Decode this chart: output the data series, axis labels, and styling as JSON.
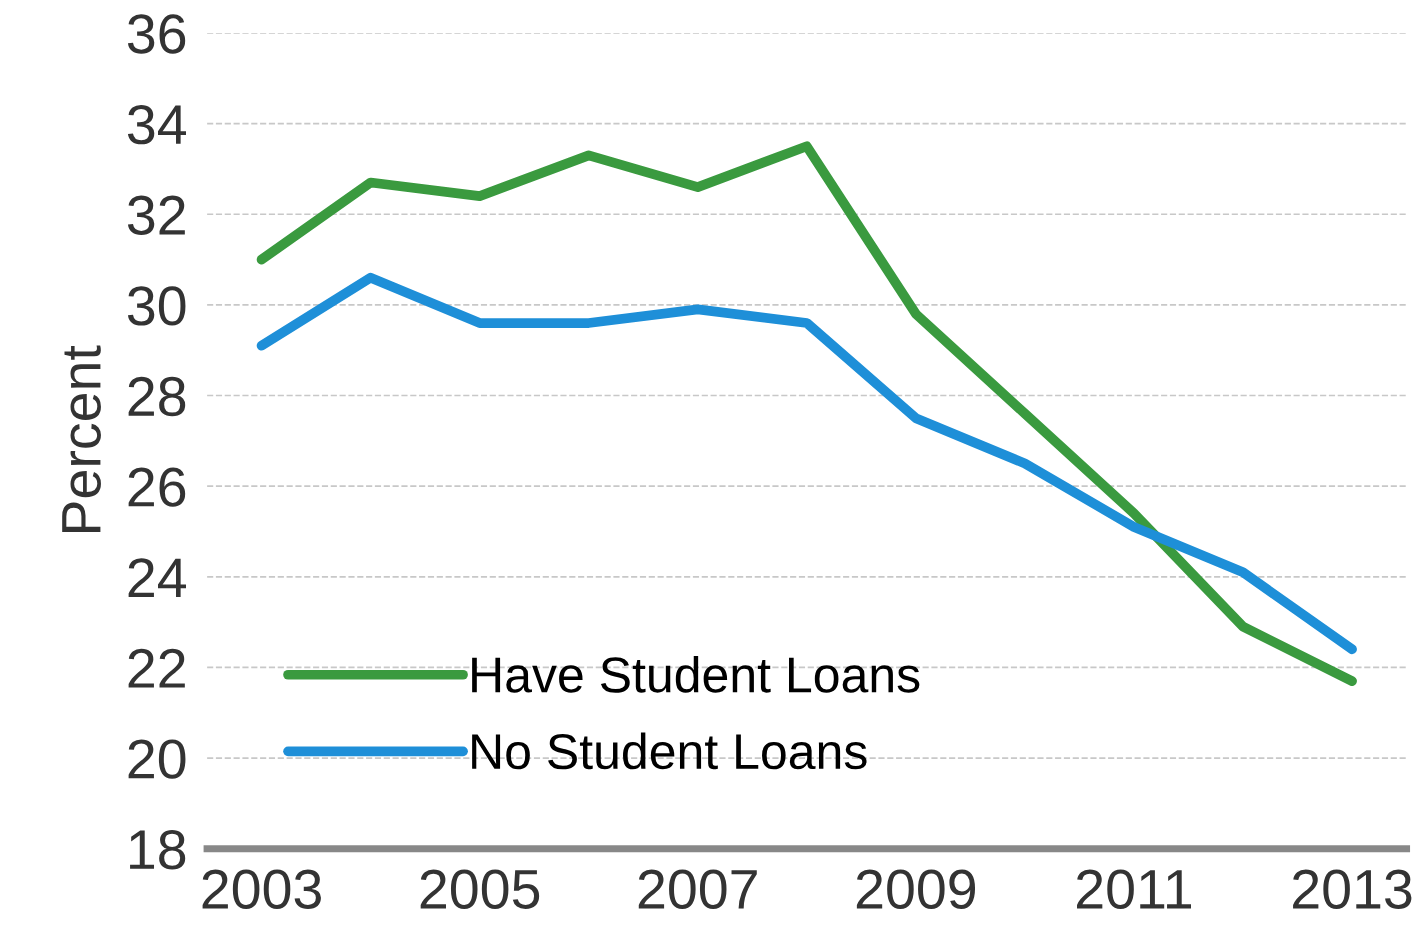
{
  "chart_data": {
    "type": "line",
    "ylabel": "Percent",
    "x": [
      2003,
      2004,
      2005,
      2006,
      2007,
      2008,
      2009,
      2010,
      2011,
      2012,
      2013
    ],
    "series": [
      {
        "name": "Have Student Loans",
        "color": "#3a9a3f",
        "values": [
          31.0,
          32.7,
          32.4,
          33.3,
          32.6,
          33.5,
          29.8,
          27.6,
          25.4,
          22.9,
          21.7
        ]
      },
      {
        "name": "No Student Loans",
        "color": "#1e8fd8",
        "values": [
          29.1,
          30.6,
          29.6,
          29.6,
          29.9,
          29.6,
          27.5,
          26.5,
          25.1,
          24.1,
          22.4
        ]
      }
    ],
    "xlim": [
      2002.5,
      2013.5
    ],
    "xticks": [
      2003,
      2005,
      2007,
      2009,
      2011,
      2013
    ],
    "ylim": [
      18,
      36
    ],
    "yticks": [
      18,
      20,
      22,
      24,
      26,
      28,
      30,
      32,
      34,
      36
    ],
    "grid": "y",
    "legend": "bottom left",
    "marker": "none",
    "line_style": "solid"
  }
}
